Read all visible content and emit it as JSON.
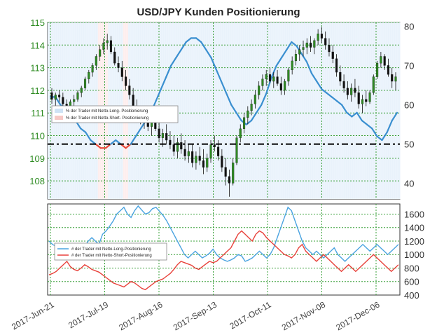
{
  "chart_data": [
    {
      "type": "line",
      "title": "USD/JPY Kunden Positionierung",
      "x_tick_labels": [
        "2017-Jun-21",
        "2017-Jul-19",
        "2017-Aug-16",
        "2017-Sep-13",
        "2017-Oct-11",
        "2017-Nov-08",
        "2017-Dec-06"
      ],
      "y_left": {
        "range": [
          107.2,
          115.0
        ],
        "ticks": [
          108,
          109,
          110,
          111,
          112,
          113,
          114,
          115
        ],
        "color": "#2e8b22"
      },
      "y_right": {
        "range": [
          36,
          81
        ],
        "ticks": [
          40,
          50,
          60,
          70,
          80
        ]
      },
      "reference_line": 50,
      "legend": {
        "position": "left",
        "entries": [
          {
            "label": "% der Trader mit Netto-Long- Positionierung",
            "color": "#cfe3f5"
          },
          {
            "label": "% der Trader mit Netto-Short- Positionierung",
            "color": "#f7c9c6"
          }
        ]
      },
      "price_ohlc": [
        [
          111.9,
          112.1,
          111.4,
          111.6
        ],
        [
          111.6,
          111.9,
          111.3,
          111.8
        ],
        [
          111.8,
          112.0,
          111.5,
          111.7
        ],
        [
          111.7,
          111.9,
          111.3,
          111.4
        ],
        [
          111.4,
          111.6,
          111.1,
          111.3
        ],
        [
          111.3,
          111.6,
          111.0,
          111.5
        ],
        [
          111.5,
          111.8,
          111.3,
          111.6
        ],
        [
          111.6,
          112.0,
          111.5,
          111.9
        ],
        [
          111.9,
          112.2,
          111.7,
          112.1
        ],
        [
          112.1,
          112.6,
          112.0,
          112.5
        ],
        [
          112.5,
          112.9,
          112.3,
          112.8
        ],
        [
          112.8,
          113.2,
          112.6,
          113.1
        ],
        [
          113.1,
          113.6,
          112.9,
          113.5
        ],
        [
          113.5,
          114.0,
          113.3,
          113.8
        ],
        [
          113.8,
          114.3,
          113.6,
          114.1
        ],
        [
          114.1,
          114.5,
          113.8,
          114.2
        ],
        [
          114.2,
          114.4,
          113.6,
          113.7
        ],
        [
          113.7,
          113.9,
          113.1,
          113.2
        ],
        [
          113.2,
          113.5,
          112.8,
          113.0
        ],
        [
          113.0,
          113.3,
          112.4,
          112.6
        ],
        [
          112.6,
          112.9,
          112.0,
          112.2
        ],
        [
          112.2,
          112.5,
          111.6,
          111.8
        ],
        [
          111.8,
          112.1,
          111.2,
          111.3
        ],
        [
          111.3,
          111.6,
          110.8,
          111.0
        ],
        [
          111.0,
          111.2,
          110.5,
          110.7
        ],
        [
          110.7,
          111.0,
          110.3,
          110.6
        ],
        [
          110.6,
          110.9,
          110.2,
          110.4
        ],
        [
          110.4,
          110.8,
          110.0,
          110.6
        ],
        [
          110.6,
          111.0,
          110.2,
          110.3
        ],
        [
          110.3,
          110.6,
          109.7,
          109.9
        ],
        [
          109.9,
          110.3,
          109.5,
          110.1
        ],
        [
          110.1,
          110.5,
          109.6,
          109.8
        ],
        [
          109.8,
          110.2,
          109.4,
          109.6
        ],
        [
          109.6,
          110.0,
          109.1,
          109.3
        ],
        [
          109.3,
          109.9,
          109.0,
          109.7
        ],
        [
          109.7,
          110.1,
          109.2,
          109.4
        ],
        [
          109.4,
          109.8,
          108.9,
          109.1
        ],
        [
          109.1,
          109.6,
          108.8,
          109.3
        ],
        [
          109.3,
          109.6,
          108.6,
          108.8
        ],
        [
          108.8,
          109.3,
          108.5,
          109.1
        ],
        [
          109.1,
          109.5,
          108.7,
          108.9
        ],
        [
          108.9,
          109.4,
          108.3,
          108.6
        ],
        [
          108.6,
          109.2,
          108.4,
          109.0
        ],
        [
          109.0,
          109.8,
          108.8,
          109.6
        ],
        [
          109.6,
          110.0,
          109.3,
          109.5
        ],
        [
          109.5,
          109.8,
          108.9,
          109.1
        ],
        [
          109.1,
          109.4,
          108.4,
          108.6
        ],
        [
          108.6,
          109.0,
          107.8,
          108.2
        ],
        [
          108.2,
          108.5,
          107.3,
          107.9
        ],
        [
          107.9,
          109.0,
          107.8,
          108.8
        ],
        [
          108.8,
          110.0,
          108.7,
          109.9
        ],
        [
          109.9,
          110.5,
          109.7,
          110.3
        ],
        [
          110.3,
          111.0,
          110.1,
          110.8
        ],
        [
          110.8,
          111.3,
          110.5,
          111.1
        ],
        [
          111.1,
          111.6,
          110.9,
          111.4
        ],
        [
          111.4,
          112.0,
          111.2,
          111.8
        ],
        [
          111.8,
          112.4,
          111.6,
          112.2
        ],
        [
          112.2,
          112.7,
          112.0,
          112.5
        ],
        [
          112.5,
          112.9,
          112.2,
          112.7
        ],
        [
          112.7,
          113.0,
          112.3,
          112.4
        ],
        [
          112.4,
          112.8,
          112.1,
          112.6
        ],
        [
          112.6,
          112.9,
          112.2,
          112.3
        ],
        [
          112.3,
          112.6,
          111.8,
          112.0
        ],
        [
          112.0,
          112.5,
          111.8,
          112.4
        ],
        [
          112.4,
          113.0,
          112.2,
          112.9
        ],
        [
          112.9,
          113.5,
          112.7,
          113.3
        ],
        [
          113.3,
          113.8,
          113.1,
          113.6
        ],
        [
          113.6,
          114.0,
          113.3,
          113.8
        ],
        [
          113.8,
          114.2,
          113.5,
          113.9
        ],
        [
          113.9,
          114.3,
          113.6,
          114.1
        ],
        [
          114.1,
          114.4,
          113.7,
          113.9
        ],
        [
          113.9,
          114.3,
          113.6,
          114.2
        ],
        [
          114.2,
          114.7,
          114.0,
          114.5
        ],
        [
          114.5,
          114.8,
          114.1,
          114.3
        ],
        [
          114.3,
          114.6,
          113.8,
          114.0
        ],
        [
          114.0,
          114.3,
          113.5,
          113.7
        ],
        [
          113.7,
          114.0,
          113.2,
          113.4
        ],
        [
          113.4,
          113.6,
          112.6,
          112.8
        ],
        [
          112.8,
          113.1,
          112.2,
          112.4
        ],
        [
          112.4,
          112.7,
          111.9,
          112.1
        ],
        [
          112.1,
          112.4,
          111.6,
          111.8
        ],
        [
          111.8,
          112.3,
          111.5,
          112.1
        ],
        [
          112.1,
          112.5,
          111.7,
          111.9
        ],
        [
          111.9,
          112.2,
          111.2,
          111.4
        ],
        [
          111.4,
          111.8,
          111.0,
          111.6
        ],
        [
          111.6,
          112.0,
          111.3,
          111.5
        ],
        [
          111.5,
          112.0,
          111.4,
          111.9
        ],
        [
          111.9,
          112.7,
          111.8,
          112.6
        ],
        [
          112.6,
          113.3,
          112.5,
          113.2
        ],
        [
          113.2,
          113.7,
          113.0,
          113.5
        ],
        [
          113.5,
          113.6,
          112.9,
          113.1
        ],
        [
          113.1,
          113.4,
          112.6,
          112.7
        ],
        [
          112.7,
          113.0,
          112.1,
          112.4
        ],
        [
          112.4,
          112.8,
          112.0,
          112.6
        ]
      ],
      "pct_long_series": [
        {
          "name": "",
          "color": "#3a8fd0",
          "values": [
            62,
            62,
            60,
            59,
            57,
            56,
            54,
            53,
            51,
            50,
            49,
            49,
            50,
            51,
            50,
            49,
            50,
            52,
            54,
            56,
            58,
            61,
            64,
            67,
            70,
            72,
            74,
            76,
            77,
            77,
            76,
            74,
            72,
            69,
            66,
            63,
            60,
            58,
            56,
            55,
            56,
            58,
            60,
            63,
            67,
            70,
            72,
            74,
            76,
            75,
            73,
            71,
            68,
            66,
            64,
            63,
            62,
            61,
            60,
            58,
            57,
            58,
            56,
            55,
            54,
            52,
            51,
            53,
            56,
            58
          ]
        },
        {
          "name": "",
          "color": "#e84a3a",
          "values": [
            50,
            49,
            48,
            47,
            46,
            45,
            44,
            44,
            45,
            46,
            47,
            48,
            49,
            50,
            49,
            48,
            47,
            45,
            44,
            43,
            42,
            42,
            41,
            42,
            43,
            44,
            45,
            46,
            44,
            43,
            42,
            43,
            44,
            46,
            48,
            50,
            49,
            47,
            46,
            45,
            44,
            43,
            42,
            41,
            40,
            40,
            41,
            42,
            44,
            46,
            48,
            50,
            49,
            48,
            47,
            46,
            47,
            48,
            49,
            50,
            49,
            48,
            49,
            50,
            49,
            48,
            47,
            48,
            50,
            51
          ]
        }
      ]
    },
    {
      "type": "line",
      "y_range": [
        400,
        1750
      ],
      "ticks": [
        400,
        600,
        800,
        1000,
        1200,
        1400,
        1600
      ],
      "legend": {
        "position": "left",
        "entries": [
          {
            "label": "# der Trader mit Netto-Long-Positionierung",
            "color": "#4aa3e0"
          },
          {
            "label": "# der Trader mit Netto-Short-Positionierung",
            "color": "#e8413a"
          }
        ]
      },
      "series": [
        {
          "name": "# der Trader mit Netto-Long-Positionierung",
          "color": "#4aa3e0",
          "values": [
            1200,
            1150,
            1120,
            1050,
            1000,
            1050,
            1100,
            1000,
            980,
            1060,
            1120,
            1200,
            1250,
            1200,
            1150,
            1300,
            1350,
            1420,
            1500,
            1600,
            1650,
            1700,
            1600,
            1550,
            1650,
            1720,
            1660,
            1600,
            1620,
            1680,
            1700,
            1640,
            1580,
            1500,
            1400,
            1300,
            1200,
            1100,
            1000,
            950,
            1000,
            1050,
            1000,
            950,
            980,
            1020,
            1080,
            1000,
            950,
            920,
            900,
            920,
            950,
            1000,
            980,
            900,
            920,
            950,
            1000,
            1050,
            1000,
            950,
            1000,
            1100,
            1250,
            1400,
            1550,
            1700,
            1650,
            1500,
            1350,
            1200,
            1100,
            1050,
            1000,
            1050,
            1000,
            950,
            1000,
            1050,
            1100,
            1000,
            950,
            900,
            950,
            1000,
            1050,
            1100,
            1150,
            1100,
            1050,
            1100,
            1150,
            1100,
            1050,
            1000,
            1050,
            1100,
            1150
          ]
        },
        {
          "name": "# der Trader mit Netto-Short-Positionierung",
          "color": "#e8413a",
          "values": [
            700,
            720,
            750,
            800,
            850,
            900,
            820,
            780,
            760,
            800,
            850,
            820,
            780,
            760,
            740,
            700,
            660,
            620,
            580,
            560,
            540,
            520,
            560,
            600,
            580,
            540,
            500,
            480,
            520,
            560,
            600,
            620,
            640,
            680,
            720,
            780,
            850,
            900,
            880,
            860,
            840,
            800,
            780,
            820,
            860,
            900,
            880,
            900,
            950,
            1000,
            1050,
            1100,
            1200,
            1300,
            1350,
            1300,
            1250,
            1200,
            1300,
            1350,
            1320,
            1250,
            1200,
            1150,
            1100,
            1050,
            1000,
            980,
            950,
            1000,
            1100,
            1150,
            1050,
            1000,
            950,
            900,
            950,
            1000,
            950,
            900,
            850,
            800,
            750,
            800,
            850,
            800,
            750,
            800,
            850,
            900,
            950,
            1000,
            950,
            900,
            850,
            800,
            750,
            800,
            850
          ]
        }
      ]
    }
  ]
}
